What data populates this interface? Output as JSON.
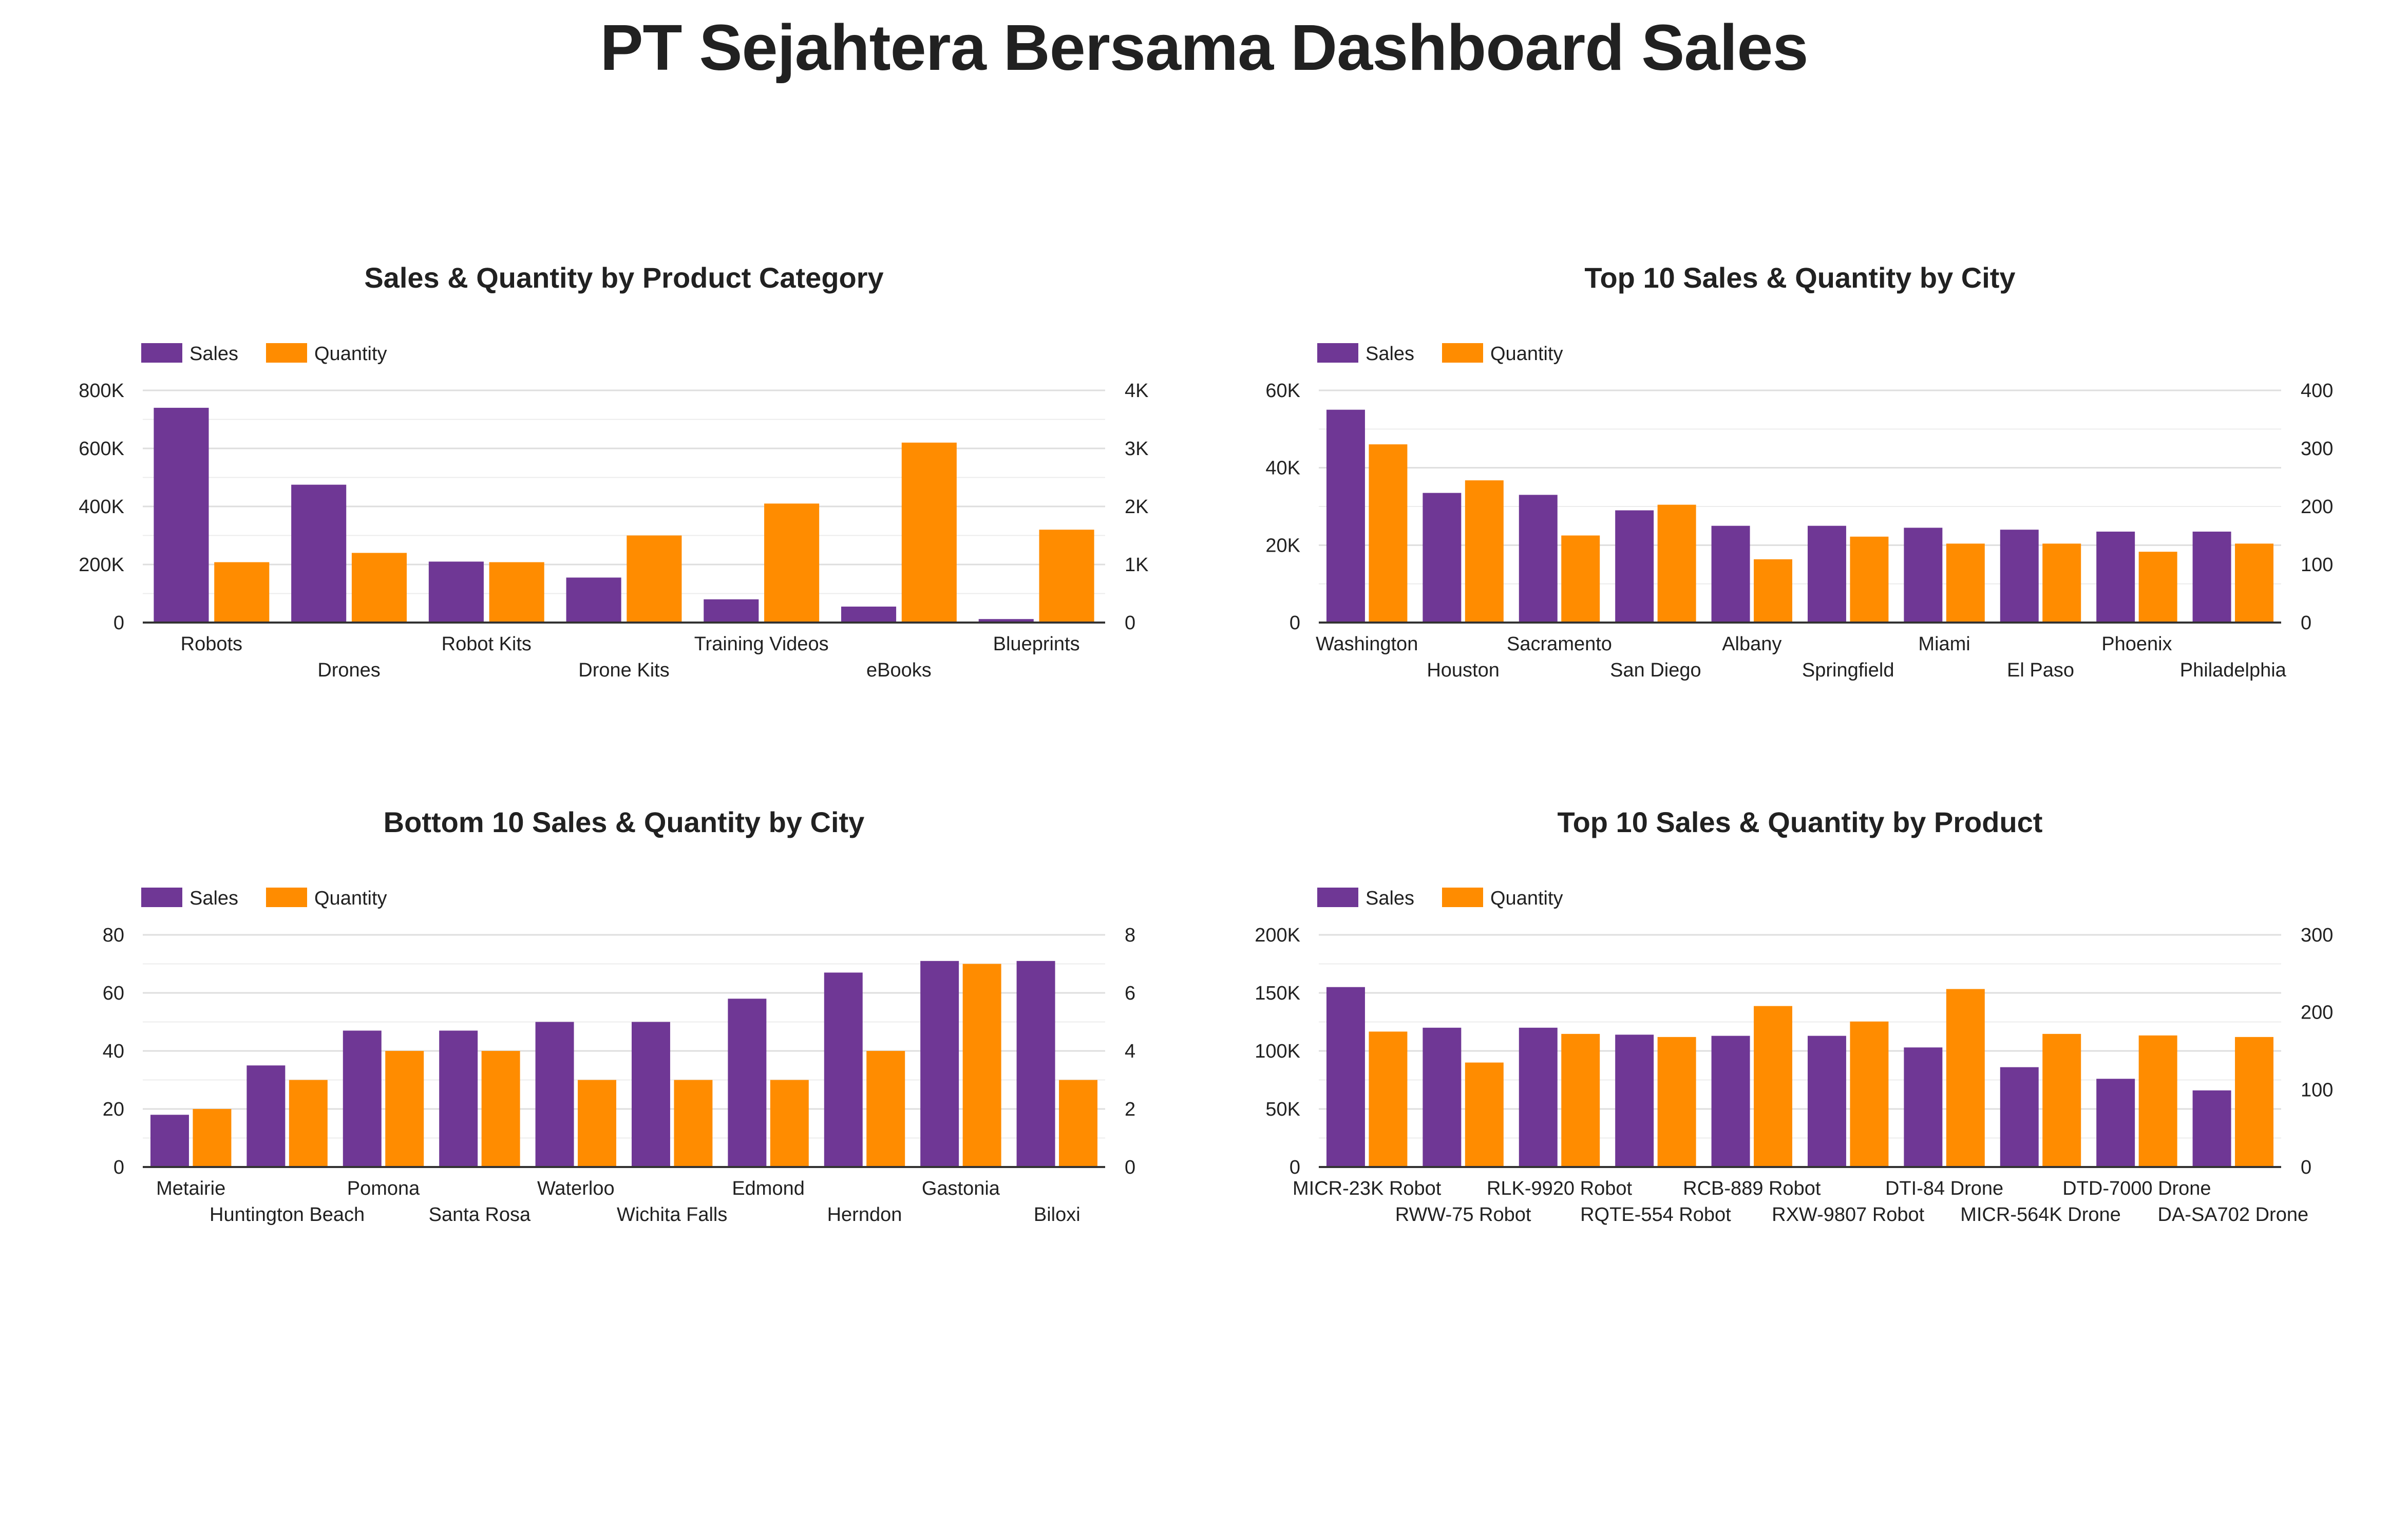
{
  "title": "PT Sejahtera Bersama Dashboard Sales",
  "colors": {
    "sales": "#6f3795",
    "quantity": "#ff8c00",
    "grid": "#dedede",
    "axis": "#333333"
  },
  "legend": {
    "sales": "Sales",
    "quantity": "Quantity"
  },
  "chart_data": [
    {
      "type": "bar",
      "title": "Sales & Quantity by Product Category",
      "categories": [
        "Robots",
        "Drones",
        "Robot Kits",
        "Drone Kits",
        "Training Videos",
        "eBooks",
        "Blueprints"
      ],
      "series": [
        {
          "name": "Sales",
          "axis": "left",
          "values": [
            740000,
            475000,
            210000,
            155000,
            80000,
            55000,
            12000
          ]
        },
        {
          "name": "Quantity",
          "axis": "right",
          "values": [
            1040,
            1200,
            1040,
            1500,
            2050,
            3100,
            1600
          ]
        }
      ],
      "ylim": [
        0,
        800000
      ],
      "yticks": [
        0,
        200000,
        400000,
        600000,
        800000
      ],
      "ytick_labels": [
        "0",
        "200K",
        "400K",
        "600K",
        "800K"
      ],
      "y2lim": [
        0,
        4000
      ],
      "y2ticks": [
        0,
        1000,
        2000,
        3000,
        4000
      ],
      "y2tick_labels": [
        "0",
        "1K",
        "2K",
        "3K",
        "4K"
      ],
      "legend_position": "top-left",
      "grid": true
    },
    {
      "type": "bar",
      "title": "Top 10 Sales & Quantity by City",
      "categories": [
        "Washington",
        "Houston",
        "Sacramento",
        "San Diego",
        "Albany",
        "Springfield",
        "Miami",
        "El Paso",
        "Phoenix",
        "Philadelphia"
      ],
      "series": [
        {
          "name": "Sales",
          "axis": "left",
          "values": [
            55000,
            33500,
            33000,
            29000,
            25000,
            25000,
            24500,
            24000,
            23500,
            23500
          ]
        },
        {
          "name": "Quantity",
          "axis": "right",
          "values": [
            307,
            245,
            150,
            203,
            109,
            148,
            136,
            136,
            122,
            136
          ]
        }
      ],
      "ylim": [
        0,
        60000
      ],
      "yticks": [
        0,
        20000,
        40000,
        60000
      ],
      "ytick_labels": [
        "0",
        "20K",
        "40K",
        "60K"
      ],
      "y2lim": [
        0,
        400
      ],
      "y2ticks": [
        0,
        100,
        200,
        300,
        400
      ],
      "y2tick_labels": [
        "0",
        "100",
        "200",
        "300",
        "400"
      ],
      "legend_position": "top-left",
      "grid": true
    },
    {
      "type": "bar",
      "title": "Bottom 10 Sales & Quantity by City",
      "categories": [
        "Metairie",
        "Huntington Beach",
        "Pomona",
        "Santa Rosa",
        "Waterloo",
        "Wichita Falls",
        "Edmond",
        "Herndon",
        "Gastonia",
        "Biloxi"
      ],
      "series": [
        {
          "name": "Sales",
          "axis": "left",
          "values": [
            18,
            35,
            47,
            47,
            50,
            50,
            58,
            67,
            71,
            71
          ]
        },
        {
          "name": "Quantity",
          "axis": "right",
          "values": [
            2,
            3,
            4,
            4,
            3,
            3,
            3,
            4,
            7,
            3
          ]
        }
      ],
      "ylim": [
        0,
        80
      ],
      "yticks": [
        0,
        20,
        40,
        60,
        80
      ],
      "ytick_labels": [
        "0",
        "20",
        "40",
        "60",
        "80"
      ],
      "y2lim": [
        0,
        8
      ],
      "y2ticks": [
        0,
        2,
        4,
        6,
        8
      ],
      "y2tick_labels": [
        "0",
        "2",
        "4",
        "6",
        "8"
      ],
      "legend_position": "top-left",
      "grid": true
    },
    {
      "type": "bar",
      "title": "Top 10 Sales & Quantity by Product",
      "categories": [
        "MICR-23K Robot",
        "RWW-75 Robot",
        "RLK-9920 Robot",
        "RQTE-554 Robot",
        "RCB-889 Robot",
        "RXW-9807 Robot",
        "DTI-84 Drone",
        "MICR-564K Drone",
        "DTD-7000 Drone",
        "DA-SA702 Drone"
      ],
      "series": [
        {
          "name": "Sales",
          "axis": "left",
          "values": [
            155000,
            120000,
            120000,
            114000,
            113000,
            113000,
            103000,
            86000,
            76000,
            66000
          ]
        },
        {
          "name": "Quantity",
          "axis": "right",
          "values": [
            175,
            135,
            172,
            168,
            208,
            188,
            230,
            172,
            170,
            168
          ]
        }
      ],
      "ylim": [
        0,
        200000
      ],
      "yticks": [
        0,
        50000,
        100000,
        150000,
        200000
      ],
      "ytick_labels": [
        "0",
        "50K",
        "100K",
        "150K",
        "200K"
      ],
      "y2lim": [
        0,
        300
      ],
      "y2ticks": [
        0,
        100,
        200,
        300
      ],
      "y2tick_labels": [
        "0",
        "100",
        "200",
        "300"
      ],
      "legend_position": "top-left",
      "grid": true
    }
  ]
}
